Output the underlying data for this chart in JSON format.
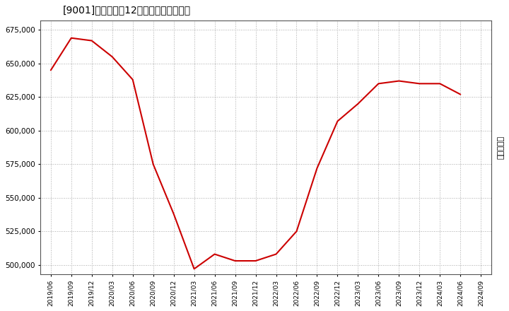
{
  "title": "[9001]　売上高の12か月移動合計の推移",
  "ylabel": "（百万円）",
  "line_color": "#cc0000",
  "background_color": "#ffffff",
  "plot_bg_color": "#ffffff",
  "grid_color": "#aaaaaa",
  "dates": [
    "2019/06",
    "2019/09",
    "2019/12",
    "2020/03",
    "2020/06",
    "2020/09",
    "2020/12",
    "2021/03",
    "2021/06",
    "2021/09",
    "2021/12",
    "2022/03",
    "2022/06",
    "2022/09",
    "2022/12",
    "2023/03",
    "2023/06",
    "2023/09",
    "2023/12",
    "2024/03",
    "2024/06",
    "2024/09"
  ],
  "values": [
    645000,
    669000,
    667000,
    655000,
    638000,
    575000,
    538000,
    497000,
    508000,
    503000,
    503000,
    508000,
    525000,
    572000,
    607000,
    620000,
    635000,
    637000,
    635000,
    635000,
    627000,
    null
  ],
  "ylim": [
    493000,
    682000
  ],
  "yticks": [
    500000,
    525000,
    550000,
    575000,
    600000,
    625000,
    650000,
    675000
  ]
}
